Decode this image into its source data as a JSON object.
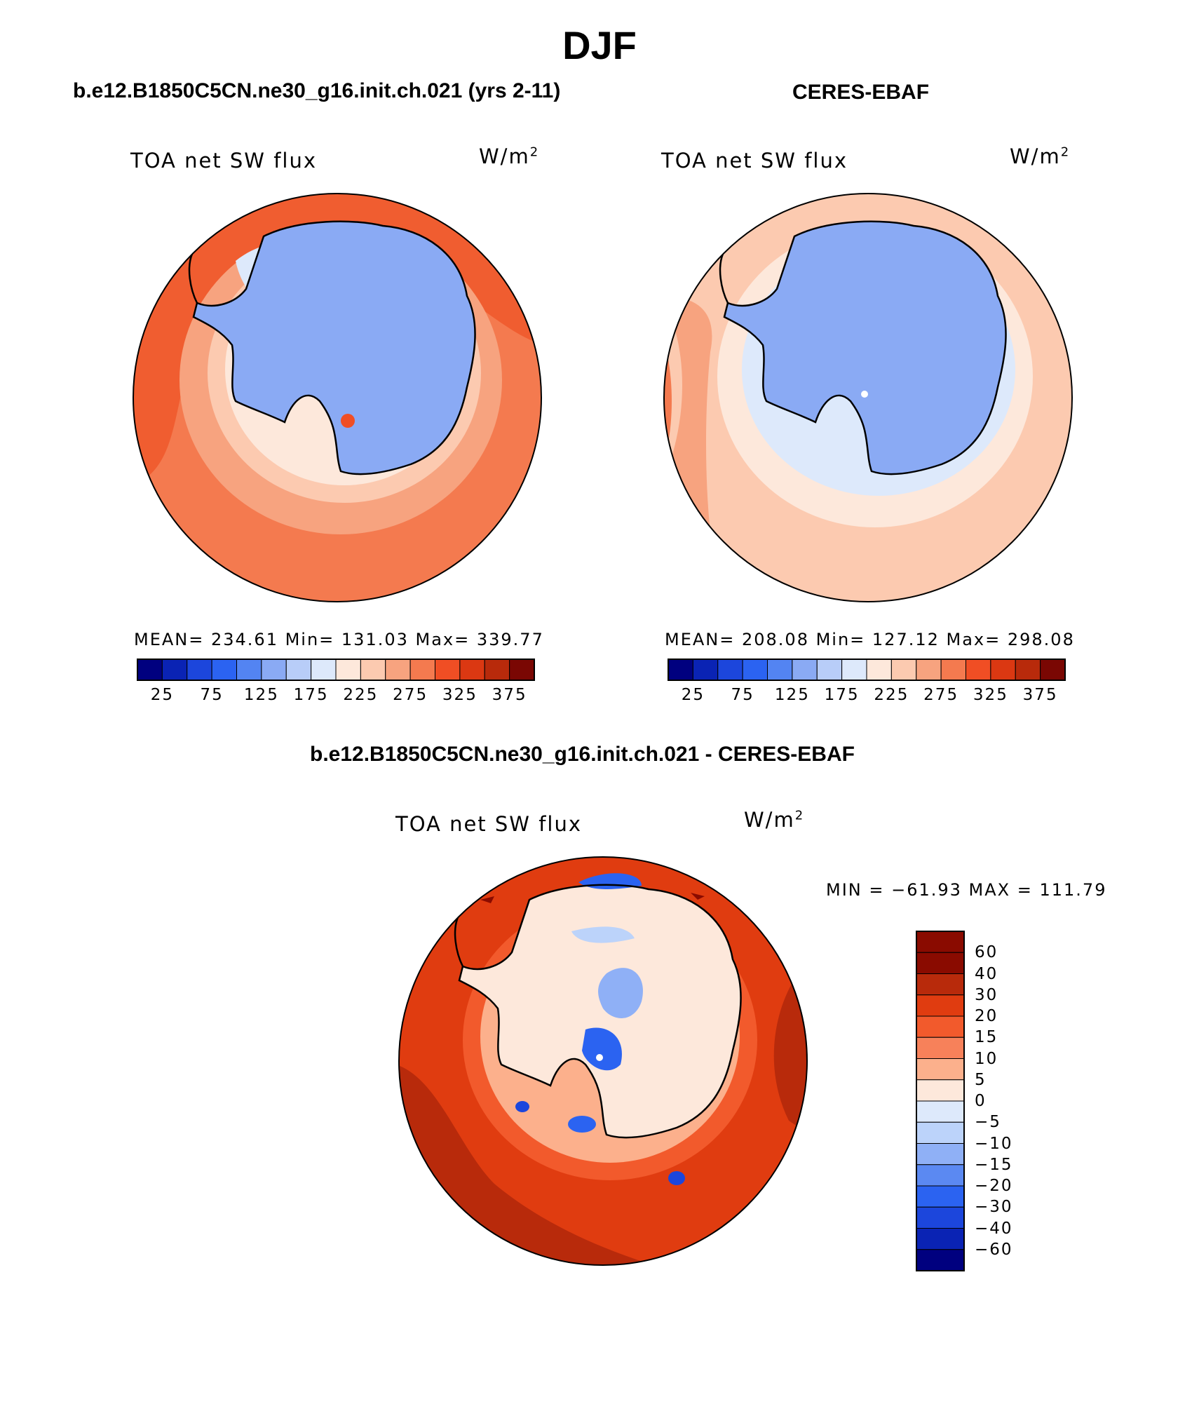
{
  "figure": {
    "title": "DJF",
    "panel_a_title": "b.e12.B1850C5CN.ne30_g16.init.ch.021 (yrs 2-11)",
    "panel_b_title": "CERES-EBAF",
    "panel_c_title": "b.e12.B1850C5CN.ne30_g16.init.ch.021 - CERES-EBAF"
  },
  "panels": [
    {
      "variable": "TOA net SW flux",
      "units_base": "W/m",
      "units_exp": "2",
      "stats": "MEAN= 234.61   Min= 131.03   Max= 339.77"
    },
    {
      "variable": "TOA net SW flux",
      "units_base": "W/m",
      "units_exp": "2",
      "stats": "MEAN= 208.08   Min= 127.12   Max= 298.08"
    },
    {
      "variable": "TOA net SW flux",
      "units_base": "W/m",
      "units_exp": "2",
      "stats": "MIN = −61.93 MAX = 111.79"
    }
  ],
  "colors": {
    "abs_scale": [
      "#00007f",
      "#0a23b4",
      "#1c46dc",
      "#2b63f1",
      "#5384f2",
      "#8aaaf4",
      "#b8cdf8",
      "#dde9fb",
      "#fde8db",
      "#fccab0",
      "#f7a37f",
      "#f47a4f",
      "#f04e24",
      "#db3812",
      "#b82a0b",
      "#7a0703"
    ],
    "diff_scale": [
      "#00007f",
      "#0a23b4",
      "#1c46dc",
      "#2b63f1",
      "#5b89f2",
      "#8fb0f6",
      "#bcd3fa",
      "#dde9fb",
      "#fde8db",
      "#fcb08c",
      "#f7815a",
      "#f25a2c",
      "#e03c10",
      "#b82a0b",
      "#8a0b00"
    ]
  },
  "chart_data": [
    {
      "type": "heatmap",
      "projection": "south polar stereographic",
      "title": "TOA net SW flux",
      "subtitle": "b.e12.B1850C5CN.ne30_g16.init.ch.021 (yrs 2-11)",
      "units": "W/m2",
      "mean": 234.61,
      "min": 131.03,
      "max": 339.77,
      "colorbar_levels": [
        25,
        75,
        125,
        175,
        225,
        275,
        325,
        375
      ],
      "colorbar_tick_labels": [
        "25",
        "75",
        "125",
        "175",
        "225",
        "275",
        "325",
        "375"
      ]
    },
    {
      "type": "heatmap",
      "projection": "south polar stereographic",
      "title": "TOA net SW flux",
      "subtitle": "CERES-EBAF",
      "units": "W/m2",
      "mean": 208.08,
      "min": 127.12,
      "max": 298.08,
      "colorbar_levels": [
        25,
        75,
        125,
        175,
        225,
        275,
        325,
        375
      ],
      "colorbar_tick_labels": [
        "25",
        "75",
        "125",
        "175",
        "225",
        "275",
        "325",
        "375"
      ]
    },
    {
      "type": "heatmap",
      "projection": "south polar stereographic",
      "title": "TOA net SW flux",
      "subtitle": "b.e12.B1850C5CN.ne30_g16.init.ch.021 - CERES-EBAF",
      "units": "W/m2",
      "min": -61.93,
      "max": 111.79,
      "colorbar_levels": [
        -60,
        -40,
        -30,
        -20,
        -15,
        -10,
        -5,
        0,
        5,
        10,
        15,
        20,
        30,
        40,
        60
      ],
      "colorbar_tick_labels": [
        "60",
        "40",
        "30",
        "20",
        "15",
        "10",
        "5",
        "0",
        "−5",
        "−10",
        "−15",
        "−20",
        "−30",
        "−40",
        "−60"
      ]
    }
  ]
}
